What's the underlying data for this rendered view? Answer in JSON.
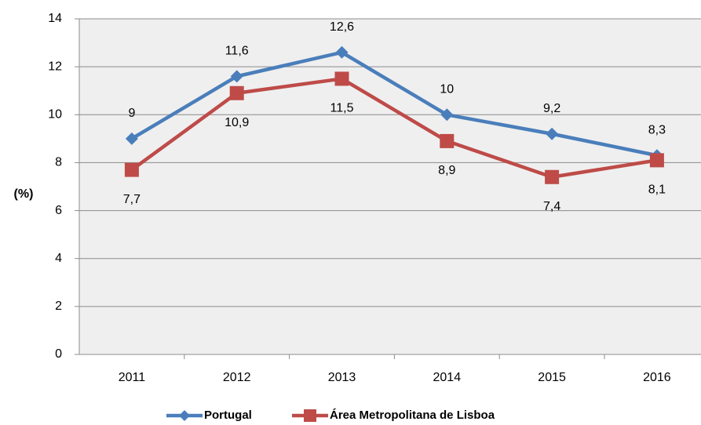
{
  "chart_data": {
    "type": "line",
    "y_label": "(%)",
    "categories": [
      "2011",
      "2012",
      "2013",
      "2014",
      "2015",
      "2016"
    ],
    "series": [
      {
        "name": "Portugal",
        "color": "#4a7ebb",
        "marker": "diamond",
        "values": [
          9,
          11.6,
          12.6,
          10,
          9.2,
          8.3
        ],
        "value_labels": [
          "9",
          "11,6",
          "12,6",
          "10",
          "9,2",
          "8,3"
        ]
      },
      {
        "name": "Área Metropolitana de Lisboa",
        "color": "#be4b48",
        "marker": "square",
        "values": [
          7.7,
          10.9,
          11.5,
          8.9,
          7.4,
          8.1
        ],
        "value_labels": [
          "7,7",
          "10,9",
          "11,5",
          "8,9",
          "7,4",
          "8,1"
        ]
      }
    ],
    "ylim": [
      0,
      14
    ],
    "yticks": [
      0,
      2,
      4,
      6,
      8,
      10,
      12,
      14
    ],
    "grid": true
  }
}
